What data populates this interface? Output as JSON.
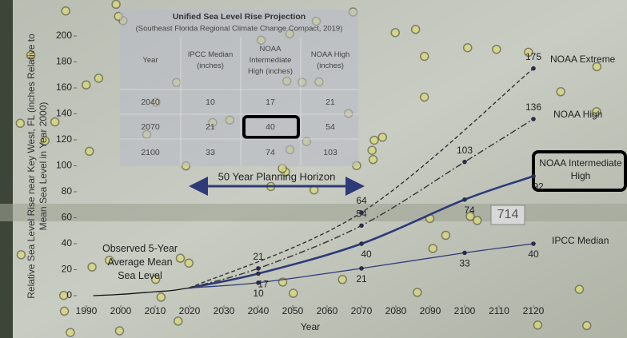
{
  "chart_data": {
    "type": "line",
    "x_label": "Year",
    "y_label": "Relative Sea Level Rise near Key West, FL (inches Relative to Mean Sea Level in Year 2000)",
    "xlim": [
      1990,
      2120
    ],
    "ylim": [
      0,
      200
    ],
    "xticks": [
      1990,
      2000,
      2010,
      2020,
      2030,
      2040,
      2050,
      2060,
      2070,
      2080,
      2090,
      2100,
      2110,
      2120
    ],
    "yticks": [
      0,
      20,
      40,
      60,
      80,
      100,
      120,
      140,
      160,
      180,
      200
    ],
    "series": [
      {
        "name": "Observed 5-Year Average Mean Sea Level",
        "color": "#111111",
        "style": "solid",
        "x": [
          1992,
          2000,
          2010,
          2015,
          2020
        ],
        "values": [
          0,
          1,
          3,
          4,
          6
        ]
      },
      {
        "name": "IPCC Median",
        "color": "#2e3a78",
        "style": "solid",
        "x": [
          2020,
          2040,
          2070,
          2100,
          2120
        ],
        "values": [
          6,
          10,
          21,
          33,
          40
        ]
      },
      {
        "name": "NOAA Intermediate High",
        "color": "#2e3a78",
        "style": "thick",
        "x": [
          2020,
          2040,
          2070,
          2100,
          2120
        ],
        "values": [
          6,
          17,
          40,
          74,
          92
        ]
      },
      {
        "name": "NOAA High",
        "color": "#333333",
        "style": "dashdot",
        "x": [
          2020,
          2040,
          2070,
          2100,
          2120
        ],
        "values": [
          6,
          21,
          54,
          103,
          136
        ]
      },
      {
        "name": "NOAA Extreme",
        "color": "#333333",
        "style": "dashed",
        "x": [
          2020,
          2070,
          2120
        ],
        "values": [
          6,
          64,
          175
        ]
      }
    ],
    "annotations": [
      "50 Year Planning Horizon",
      "714"
    ],
    "table": {
      "title": "Unified Sea Level Rise Projection",
      "subtitle": "(Southeast Florida Regional Climate Change Compact, 2019)",
      "columns": [
        "Year",
        "IPCC Median (inches)",
        "NOAA Intermediate High (inches)",
        "NOAA High (inches)"
      ],
      "rows": [
        [
          2040,
          10,
          17,
          21
        ],
        [
          2070,
          21,
          40,
          54
        ],
        [
          2100,
          33,
          74,
          103
        ]
      ]
    }
  }
}
